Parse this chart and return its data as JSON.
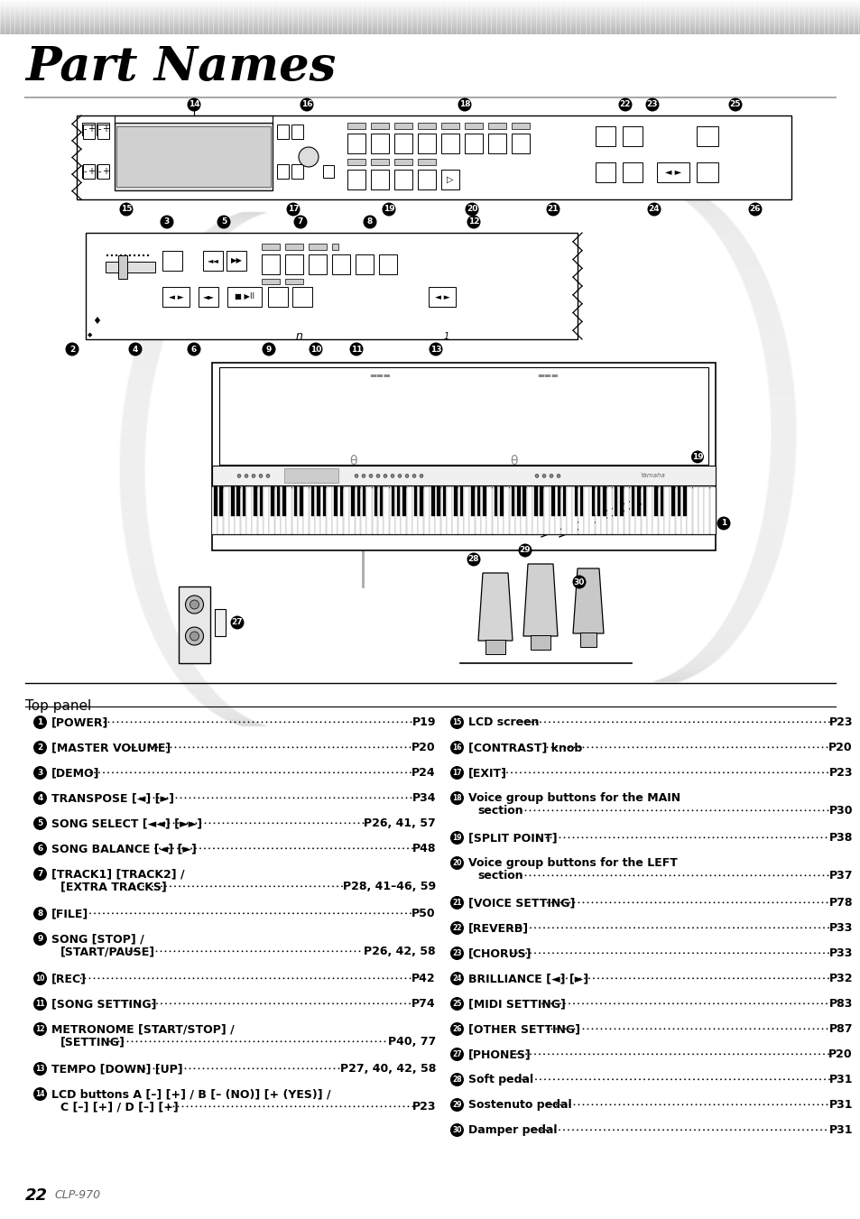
{
  "title": "Part Names",
  "bg_color": "#ffffff",
  "page_number": "22",
  "model": "CLP-970",
  "section_header": "Top panel",
  "left_items": [
    {
      "num": "1",
      "line1": "[POWER]",
      "line2": "",
      "page": "P19"
    },
    {
      "num": "2",
      "line1": "[MASTER VOLUME]",
      "line2": "",
      "page": "P20"
    },
    {
      "num": "3",
      "line1": "[DEMO]",
      "line2": "",
      "page": "P24"
    },
    {
      "num": "4",
      "line1": "TRANSPOSE [◄] [►]",
      "line2": "",
      "page": "P34"
    },
    {
      "num": "5",
      "line1": "SONG SELECT [◄◄] [►►]",
      "line2": "",
      "page": "P26, 41, 57"
    },
    {
      "num": "6",
      "line1": "SONG BALANCE [◄] [►]",
      "line2": "",
      "page": "P48"
    },
    {
      "num": "7",
      "line1": "[TRACK1] [TRACK2] /",
      "line2": "[EXTRA TRACKS]",
      "page": "P28, 41–46, 59"
    },
    {
      "num": "8",
      "line1": "[FILE]",
      "line2": "",
      "page": "P50"
    },
    {
      "num": "9",
      "line1": "SONG [STOP] /",
      "line2": "[START/PAUSE]",
      "page": "P26, 42, 58"
    },
    {
      "num": "10",
      "line1": "[REC]",
      "line2": "",
      "page": "P42"
    },
    {
      "num": "11",
      "line1": "[SONG SETTING]",
      "line2": "",
      "page": "P74"
    },
    {
      "num": "12",
      "line1": "METRONOME [START/STOP] /",
      "line2": "[SETTING]",
      "page": "P40, 77"
    },
    {
      "num": "13",
      "line1": "TEMPO [DOWN] [UP]",
      "line2": "",
      "page": "P27, 40, 42, 58"
    },
    {
      "num": "14",
      "line1": "LCD buttons A [–] [+] / B [– (NO)] [+ (YES)] /",
      "line2": "C [–] [+] / D [–] [+]",
      "page": "P23"
    }
  ],
  "right_items": [
    {
      "num": "15",
      "line1": "LCD screen",
      "line2": "",
      "page": "P23"
    },
    {
      "num": "16",
      "line1": "[CONTRAST] knob",
      "line2": "",
      "page": "P20"
    },
    {
      "num": "17",
      "line1": "[EXIT]",
      "line2": "",
      "page": "P23"
    },
    {
      "num": "18",
      "line1": "Voice group buttons for the MAIN",
      "line2": "section",
      "page": "P30"
    },
    {
      "num": "19",
      "line1": "[SPLIT POINT]",
      "line2": "",
      "page": "P38"
    },
    {
      "num": "20",
      "line1": "Voice group buttons for the LEFT",
      "line2": "section",
      "page": "P37"
    },
    {
      "num": "21",
      "line1": "[VOICE SETTING]",
      "line2": "",
      "page": "P78"
    },
    {
      "num": "22",
      "line1": "[REVERB]",
      "line2": "",
      "page": "P33"
    },
    {
      "num": "23",
      "line1": "[CHORUS]",
      "line2": "",
      "page": "P33"
    },
    {
      "num": "24",
      "line1": "BRILLIANCE [◄] [►]",
      "line2": "",
      "page": "P32"
    },
    {
      "num": "25",
      "line1": "[MIDI SETTING]",
      "line2": "",
      "page": "P83"
    },
    {
      "num": "26",
      "line1": "[OTHER SETTING]",
      "line2": "",
      "page": "P87"
    },
    {
      "num": "27",
      "line1": "[PHONES]",
      "line2": "",
      "page": "P20"
    },
    {
      "num": "28",
      "line1": "Soft pedal",
      "line2": "",
      "page": "P31"
    },
    {
      "num": "29",
      "line1": "Sostenuto pedal",
      "line2": "",
      "page": "P31"
    },
    {
      "num": "30",
      "line1": "Damper pedal",
      "line2": "",
      "page": "P31"
    }
  ]
}
